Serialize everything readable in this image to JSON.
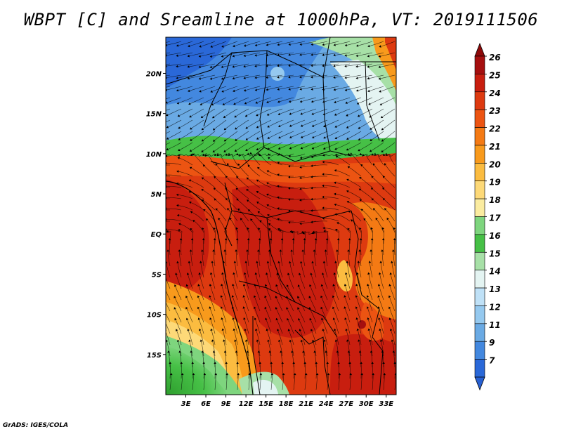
{
  "title": "WBPT [C] and Sreamline at 1000hPa, VT: 2019111506",
  "credit": "GrADS: IGES/COLA",
  "lat_ticks": [
    {
      "label": "20N",
      "value": 20
    },
    {
      "label": "15N",
      "value": 15
    },
    {
      "label": "10N",
      "value": 10
    },
    {
      "label": "5N",
      "value": 5
    },
    {
      "label": "EQ",
      "value": 0
    },
    {
      "label": "5S",
      "value": -5
    },
    {
      "label": "10S",
      "value": -10
    },
    {
      "label": "15S",
      "value": -15
    }
  ],
  "lon_ticks": [
    {
      "label": "3E",
      "value": 3
    },
    {
      "label": "6E",
      "value": 6
    },
    {
      "label": "9E",
      "value": 9
    },
    {
      "label": "12E",
      "value": 12
    },
    {
      "label": "15E",
      "value": 15
    },
    {
      "label": "18E",
      "value": 18
    },
    {
      "label": "21E",
      "value": 21
    },
    {
      "label": "24E",
      "value": 24
    },
    {
      "label": "27E",
      "value": 27
    },
    {
      "label": "30E",
      "value": 30
    },
    {
      "label": "33E",
      "value": 33
    }
  ],
  "extent": {
    "lon_min": 0,
    "lon_max": 34.5,
    "lat_min": -20,
    "lat_max": 24.5
  },
  "colorbar": {
    "labels": [
      "26",
      "25",
      "24",
      "23",
      "22",
      "21",
      "20",
      "19",
      "18",
      "17",
      "16",
      "15",
      "14",
      "13",
      "12",
      "11",
      "9",
      "7"
    ],
    "colors": [
      "#a50f0f",
      "#c81e0f",
      "#dd3a10",
      "#ec5412",
      "#f47a14",
      "#f89a1c",
      "#fbbc40",
      "#fdd978",
      "#fbeca0",
      "#7ed57e",
      "#46c046",
      "#a7e0a7",
      "#e4f4f2",
      "#bfe1f7",
      "#95c9ef",
      "#6aaae4",
      "#4388df",
      "#2a68d8"
    ],
    "top_arrow": "#8e0909",
    "bottom_arrow": "#2760d2"
  }
}
